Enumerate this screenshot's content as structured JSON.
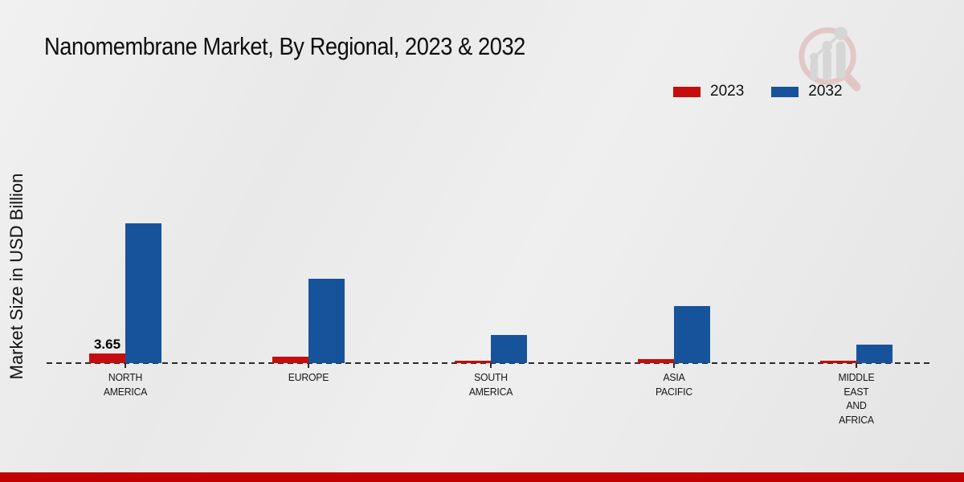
{
  "header": {
    "title": "Nanomembrane Market, By Regional, 2023 & 2032"
  },
  "axis": {
    "y_label": "Market Size in USD Billion"
  },
  "legend": {
    "items": [
      {
        "label": "2023",
        "color": "#c60d0d"
      },
      {
        "label": "2032",
        "color": "#17539b"
      }
    ]
  },
  "colors": {
    "series_2023": "#c60d0d",
    "series_2032": "#17539b",
    "footer_bar": "#c00000",
    "background": "#eaeaea",
    "axis_line": "#2b2b2b"
  },
  "watermark": {
    "icon": "magnifier-bar-chart-logo-icon"
  },
  "chart_data": {
    "type": "bar",
    "title": "Nanomembrane Market, By Regional, 2023 & 2032",
    "xlabel": "",
    "ylabel": "Market Size in USD Billion",
    "categories": [
      "NORTH AMERICA",
      "EUROPE",
      "SOUTH AMERICA",
      "ASIA PACIFIC",
      "MIDDLE EAST AND AFRICA"
    ],
    "category_lines": [
      [
        "NORTH",
        "AMERICA"
      ],
      [
        "EUROPE"
      ],
      [
        "SOUTH",
        "AMERICA"
      ],
      [
        "ASIA",
        "PACIFIC"
      ],
      [
        "MIDDLE",
        "EAST",
        "AND",
        "AFRICA"
      ]
    ],
    "series": [
      {
        "name": "2023",
        "color": "#c60d0d",
        "values": [
          3.65,
          2.5,
          1.1,
          1.6,
          0.8
        ]
      },
      {
        "name": "2032",
        "color": "#17539b",
        "values": [
          54.4,
          32.8,
          10.9,
          22.2,
          7.2
        ]
      }
    ],
    "data_labels": [
      {
        "series": "2023",
        "category_index": 0,
        "text": "3.65"
      }
    ],
    "ylim": [
      0,
      57
    ],
    "grid": false,
    "baseline_style": "dashed",
    "legend_position": "top-right"
  }
}
